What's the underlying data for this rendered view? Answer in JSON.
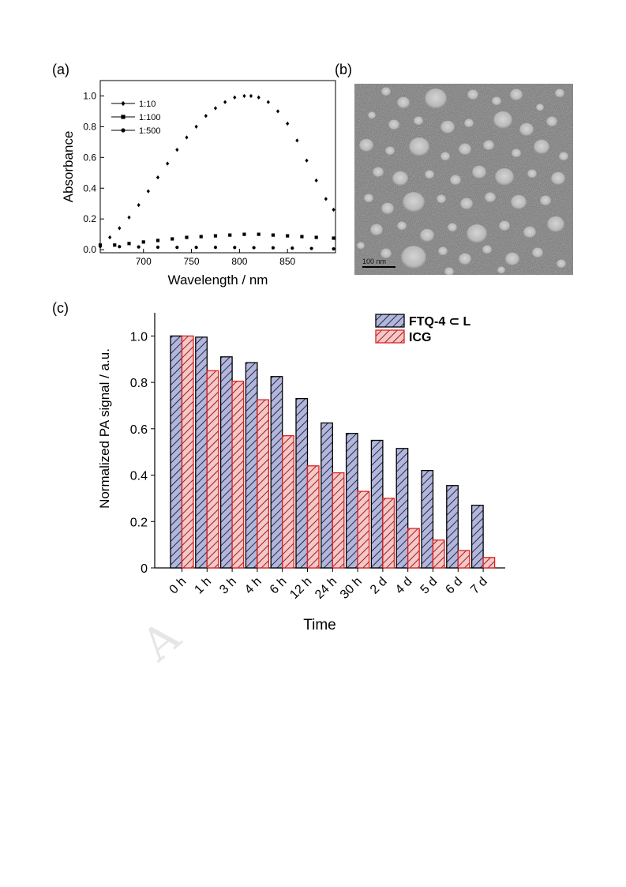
{
  "panels": {
    "a": "(a)",
    "b": "(b)",
    "c": "(c)"
  },
  "watermark": "A",
  "scale_bar": {
    "label": "100 nm"
  },
  "colors": {
    "ftq": "#b3b6d9",
    "ftq_stroke": "#000000",
    "ftq_hatch": "#1f2a55",
    "icg": "#f2c8c8",
    "icg_stroke": "#e02020",
    "icg_hatch": "#a81818"
  },
  "chart_data": [
    {
      "panel": "a",
      "type": "scatter",
      "xlabel": "Wavelength / nm",
      "ylabel": "Absorbance",
      "xlim": [
        655,
        900
      ],
      "ylim": [
        -0.02,
        1.1
      ],
      "xticks": [
        700,
        750,
        800,
        850
      ],
      "yticks": [
        0.0,
        0.2,
        0.4,
        0.6,
        0.8,
        1.0
      ],
      "ytick_labels": [
        "0.0",
        "0.2",
        "0.4",
        "0.6",
        "0.8",
        "1.0"
      ],
      "legend_position": "top-left",
      "series": [
        {
          "name": "1:10",
          "marker": "diamond",
          "x": [
            655,
            665,
            675,
            685,
            695,
            705,
            715,
            725,
            735,
            745,
            755,
            765,
            775,
            785,
            795,
            805,
            812,
            820,
            830,
            840,
            850,
            860,
            870,
            880,
            890,
            898
          ],
          "y": [
            0.02,
            0.08,
            0.14,
            0.21,
            0.29,
            0.38,
            0.47,
            0.56,
            0.65,
            0.73,
            0.8,
            0.87,
            0.92,
            0.96,
            0.99,
            1.0,
            1.0,
            0.99,
            0.96,
            0.9,
            0.82,
            0.71,
            0.58,
            0.45,
            0.33,
            0.26
          ]
        },
        {
          "name": "1:100",
          "marker": "square",
          "x": [
            655,
            670,
            685,
            700,
            715,
            730,
            745,
            760,
            775,
            790,
            805,
            820,
            835,
            850,
            865,
            880,
            898
          ],
          "y": [
            0.03,
            0.03,
            0.04,
            0.05,
            0.06,
            0.07,
            0.08,
            0.085,
            0.09,
            0.095,
            0.1,
            0.1,
            0.095,
            0.09,
            0.085,
            0.08,
            0.075
          ]
        },
        {
          "name": "1:500",
          "marker": "circle",
          "x": [
            655,
            675,
            695,
            715,
            735,
            755,
            775,
            795,
            815,
            835,
            855,
            875,
            898
          ],
          "y": [
            0.025,
            0.02,
            0.018,
            0.016,
            0.015,
            0.015,
            0.015,
            0.014,
            0.013,
            0.012,
            0.01,
            0.008,
            0.005
          ]
        }
      ]
    },
    {
      "panel": "c",
      "type": "bar",
      "xlabel": "Time",
      "ylabel": "Normalized PA signal / a.u.",
      "ylim": [
        0,
        1.1
      ],
      "yticks": [
        0,
        0.2,
        0.4,
        0.6,
        0.8,
        1.0
      ],
      "ytick_labels": [
        "0",
        "0.2",
        "0.4",
        "0.6",
        "0.8",
        "1.0"
      ],
      "legend_position": "top-right",
      "categories": [
        "0 h",
        "1 h",
        "3 h",
        "4 h",
        "6 h",
        "12 h",
        "24 h",
        "30 h",
        "2 d",
        "4 d",
        "5 d",
        "6 d",
        "7 d"
      ],
      "series": [
        {
          "name": "FTQ-4 ⊂ L",
          "values": [
            1.0,
            0.995,
            0.91,
            0.885,
            0.825,
            0.73,
            0.625,
            0.58,
            0.55,
            0.515,
            0.42,
            0.355,
            0.27
          ]
        },
        {
          "name": "ICG",
          "values": [
            1.0,
            0.85,
            0.805,
            0.725,
            0.57,
            0.44,
            0.41,
            0.33,
            0.3,
            0.17,
            0.12,
            0.075,
            0.045
          ]
        }
      ]
    }
  ]
}
